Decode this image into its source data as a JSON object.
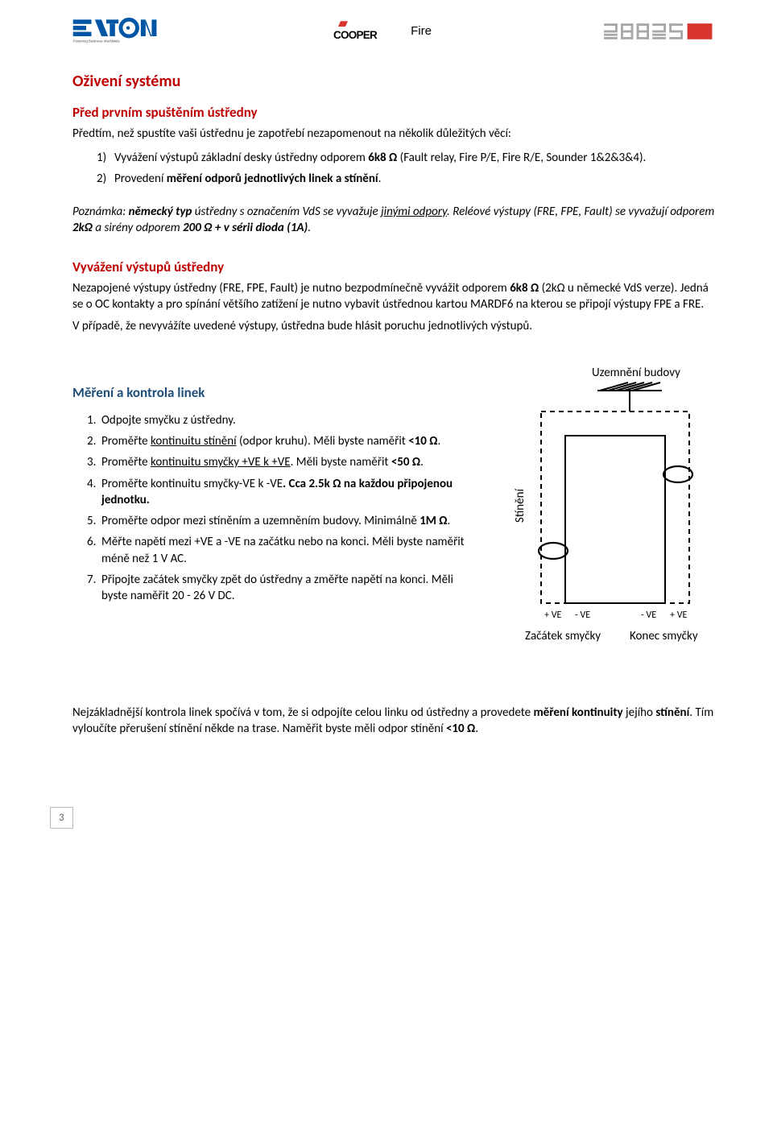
{
  "header": {
    "eaton_color": "#0055a4",
    "eaton_tagline": "Powering Business Worldwide",
    "cooper_text": "COOPER",
    "cooper_red": "#d6342c",
    "cooper_fire": "Fire",
    "abbas_color": "#a7a7a7"
  },
  "h1": "Oživení systému",
  "section1": {
    "title": "Před prvním spuštěním ústředny",
    "intro": "Předtím, než spustíte vaši ústřednu je zapotřebí nezapomenout na několik důležitých věcí:",
    "items": [
      {
        "n": "1)",
        "text": "Vyvážení výstupů základní desky ústředny odporem ",
        "bold1": "6k8 Ω",
        "text2": " (Fault relay, Fire P/E, Fire R/E, Sounder 1&2&3&4)."
      },
      {
        "n": "2)",
        "text": "Provedení ",
        "bold1": "měření odporů jednotlivých linek a stínění",
        "text2": "."
      }
    ]
  },
  "note": {
    "line1a": "Poznámka: ",
    "line1b": "německý typ",
    "line1c": " ústředny s označením VdS se vyvažuje ",
    "line1d": "jinými odpory",
    "line1e": ". Reléové výstupy (FRE, FPE, Fault) se vyvažují odporem ",
    "line1f": "2kΩ",
    "line1g": " a sirény odporem ",
    "line1h": "200 Ω + v sérii dioda (1A)",
    "line1i": "."
  },
  "section2": {
    "title": "Vyvážení výstupů ústředny",
    "p1a": "Nezapojené výstupy ústředny (FRE, FPE, Fault) je nutno bezpodmínečně vyvážit odporem ",
    "p1b": "6k8 Ω",
    "p1c": " (2kΩ u německé VdS verze). Jedná se o OC kontakty a pro spínání většího zatížení je nutno vybavit ústřednou kartou MARDF6 na kterou se připojí výstupy FPE a FRE.",
    "p2": "V případě, že nevyvážíte uvedené výstupy, ústředna bude hlásit poruchu jednotlivých výstupů."
  },
  "section3": {
    "title": "Měření a kontrola linek",
    "steps": [
      {
        "n": "1.",
        "parts": [
          "Odpojte smyčku z ústředny."
        ]
      },
      {
        "n": "2.",
        "parts": [
          "Proměřte ",
          {
            "u": "kontinuitu stínění"
          },
          " (odpor kruhu). Měli byste naměřit ",
          {
            "b": "<10 Ω"
          },
          "."
        ]
      },
      {
        "n": "3.",
        "parts": [
          "Proměřte ",
          {
            "u": "kontinuitu smyčky +VE k +VE"
          },
          ". Měli byste naměřit ",
          {
            "b": "<50 Ω"
          },
          "."
        ]
      },
      {
        "n": "4.",
        "parts": [
          "Proměřte kontinuitu smyčky-VE k -VE",
          {
            "b": ". Cca 2.5k Ω na každou připojenou jednotku."
          }
        ]
      },
      {
        "n": "5.",
        "parts": [
          "Proměřte odpor mezi stíněním a uzemněním budovy. Minimálně ",
          {
            "b": "1M Ω"
          },
          "."
        ]
      },
      {
        "n": "6.",
        "parts": [
          "Měřte napětí mezi +VE a -VE na začátku nebo na konci. Měli byste naměřit méně než 1 V AC."
        ]
      },
      {
        "n": "7.",
        "parts": [
          "Připojte začátek smyčky zpět do ústředny a změřte napětí na konci. Měli byste naměřit 20 - 26 V DC."
        ]
      }
    ]
  },
  "diagram": {
    "ground_label": "Uzemnění budovy",
    "shield_label": "Stínění",
    "start_label": "Začátek smyčky",
    "end_label": "Konec smyčky",
    "plus": "+ VE",
    "minus": "- VE",
    "line_color": "#000000",
    "text_color": "#000000"
  },
  "bottom": {
    "p1a": "Nejzákladnější kontrola linek spočívá v tom, že si odpojíte celou linku od ústředny a provedete ",
    "p1b": "měření kontinuity",
    "p1c": " jejího ",
    "p1d": "stínění",
    "p1e": ". Tím vyloučíte přerušení stínění někde na trase. Naměřit byste měli odpor stínění ",
    "p1f": "<10 Ω",
    "p1g": "."
  },
  "page_number": "3"
}
